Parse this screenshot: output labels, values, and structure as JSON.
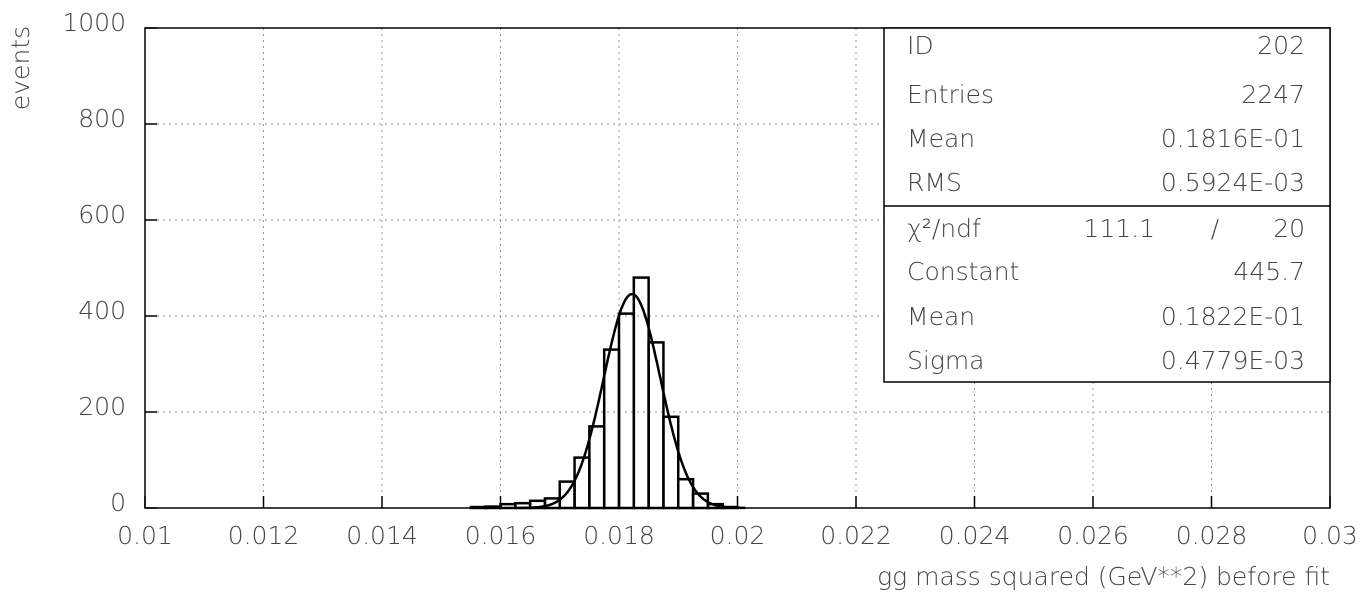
{
  "chart_data": {
    "type": "histogram",
    "xlabel": "gg  mass squared (GeV**2)  before fit",
    "ylabel": "events",
    "bins": [
      0.0155,
      0.01575,
      0.016,
      0.01625,
      0.0165,
      0.01675,
      0.017,
      0.01725,
      0.0175,
      0.01775,
      0.018,
      0.01825,
      0.0185,
      0.01875,
      0.019,
      0.01925,
      0.0195,
      0.01975,
      0.02
    ],
    "counts": [
      2,
      3,
      8,
      10,
      15,
      20,
      55,
      105,
      170,
      330,
      405,
      480,
      345,
      190,
      60,
      30,
      8,
      2
    ],
    "color": "#000000",
    "xlim": [
      0.01,
      0.03
    ],
    "xticks": [
      0.01,
      0.012,
      0.014,
      0.016,
      0.018,
      0.02,
      0.022,
      0.024,
      0.026,
      0.028,
      0.03
    ],
    "ylim": [
      0,
      1000
    ],
    "yticks": [
      0,
      200,
      400,
      600,
      800,
      1000
    ],
    "grid": true,
    "stats": [
      {
        "name": "ID",
        "value": 202
      },
      {
        "name": "Entries",
        "value": 2247
      },
      {
        "name": "Mean",
        "value": 0.01816,
        "label": "0.1816E-01"
      },
      {
        "name": "RMS",
        "value": 0.0005924,
        "label": "0.5924E-03"
      }
    ],
    "fit": {
      "chi2_name": "χ²/ndf",
      "chi2": 111.1,
      "slash": "/",
      "ndf": 20,
      "params": [
        {
          "name": "Constant",
          "value": 445.7
        },
        {
          "name": "Mean",
          "value": 0.01822,
          "label": "0.1822E-01"
        },
        {
          "name": "Sigma",
          "value": 0.0004779,
          "label": "0.4779E-03"
        }
      ]
    }
  }
}
